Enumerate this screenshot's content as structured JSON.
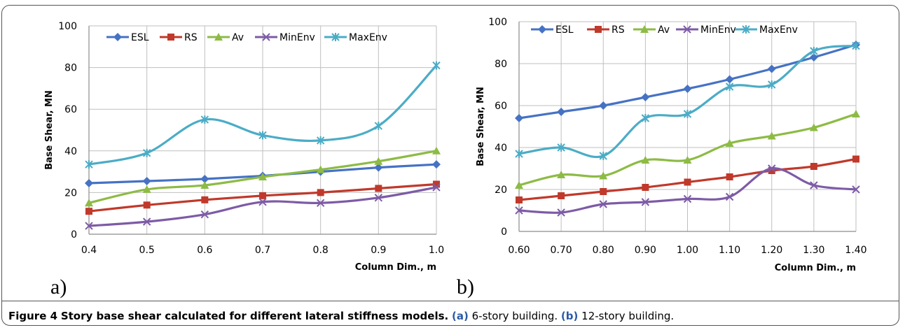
{
  "chart_data": [
    {
      "type": "line",
      "panel": "a)",
      "xlabel": "Column Dim., m",
      "ylabel": "Base Shear, MN",
      "categories": [
        "0.4",
        "0.5",
        "0.6",
        "0.7",
        "0.8",
        "0.9",
        "1.0"
      ],
      "ylim": [
        0,
        100
      ],
      "yticks": [
        0,
        20,
        40,
        60,
        80,
        100
      ],
      "grid": true,
      "legend": "top",
      "series": [
        {
          "name": "ESL",
          "color": "#4572c4",
          "marker": "diamond",
          "values": [
            24.5,
            25.5,
            26.5,
            28,
            30,
            32,
            33.5
          ]
        },
        {
          "name": "RS",
          "color": "#c0392b",
          "marker": "square",
          "values": [
            11,
            14,
            16.5,
            18.5,
            20,
            22,
            24
          ]
        },
        {
          "name": "Av",
          "color": "#8dbb45",
          "marker": "triangle",
          "values": [
            15,
            21.5,
            23.5,
            27.5,
            31,
            35,
            40
          ]
        },
        {
          "name": "MinEnv",
          "color": "#7d5ba6",
          "marker": "x",
          "values": [
            4,
            6,
            9.5,
            15.5,
            15,
            17.5,
            22.5
          ]
        },
        {
          "name": "MaxEnv",
          "color": "#4bacc6",
          "marker": "star",
          "values": [
            33.5,
            39,
            55,
            47.5,
            45,
            52,
            81
          ]
        }
      ]
    },
    {
      "type": "line",
      "panel": "b)",
      "xlabel": "Column Dim., m",
      "ylabel": "Base Shear, MN",
      "categories": [
        "0.60",
        "0.70",
        "0.80",
        "0.90",
        "1.00",
        "1.10",
        "1.20",
        "1.30",
        "1.40"
      ],
      "ylim": [
        0,
        100
      ],
      "yticks": [
        0,
        20,
        40,
        60,
        80,
        100
      ],
      "grid": true,
      "legend": "top",
      "series": [
        {
          "name": "ESL",
          "color": "#4572c4",
          "marker": "diamond",
          "values": [
            54,
            57,
            60,
            64,
            68,
            72.5,
            77.5,
            83,
            89
          ]
        },
        {
          "name": "RS",
          "color": "#c0392b",
          "marker": "square",
          "values": [
            15,
            17,
            19,
            21,
            23.5,
            26,
            29,
            31,
            34.5
          ]
        },
        {
          "name": "Av",
          "color": "#8dbb45",
          "marker": "triangle",
          "values": [
            22,
            27,
            26.5,
            34,
            34,
            42,
            45.5,
            49.5,
            56
          ]
        },
        {
          "name": "MinEnv",
          "color": "#7d5ba6",
          "marker": "x",
          "values": [
            10,
            9,
            13,
            14,
            15.5,
            16.5,
            30,
            22,
            20
          ]
        },
        {
          "name": "MaxEnv",
          "color": "#4bacc6",
          "marker": "star",
          "values": [
            37,
            40,
            36,
            54,
            56,
            69,
            70,
            86,
            88.5
          ]
        }
      ]
    }
  ],
  "caption": {
    "label": "Figure 4",
    "title": "Story base shear calculated for different lateral stiffness models.",
    "a_tag": "(a)",
    "a_text": "6-story building.",
    "b_tag": "(b)",
    "b_text": "12-story building."
  }
}
